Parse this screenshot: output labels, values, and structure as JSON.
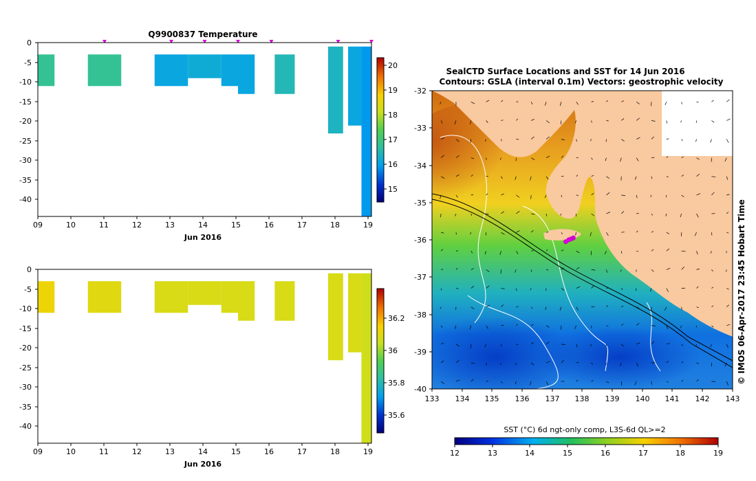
{
  "top_panel": {
    "title": "Q9900837  Temperature",
    "xticks": [
      "09",
      "10",
      "11",
      "12",
      "13",
      "14",
      "15",
      "16",
      "17",
      "18",
      "19"
    ],
    "yticks": [
      "0",
      "-5",
      "-10",
      "-15",
      "-20",
      "-25",
      "-30",
      "-35",
      "-40"
    ],
    "xlabel": "Jun 2016",
    "cbar_ticks": [
      "20",
      "19",
      "18",
      "17",
      "16",
      "15"
    ]
  },
  "bottom_panel": {
    "xticks": [
      "09",
      "10",
      "11",
      "12",
      "13",
      "14",
      "15",
      "16",
      "17",
      "18",
      "19"
    ],
    "yticks": [
      "0",
      "-5",
      "-10",
      "-15",
      "-20",
      "-25",
      "-30",
      "-35",
      "-40"
    ],
    "xlabel": "Jun 2016",
    "cbar_ticks": [
      "36.2",
      "36",
      "35.8",
      "35.6"
    ]
  },
  "map_panel": {
    "title_line1": "SealCTD Surface Locations and SST for 14 Jun 2016",
    "title_line2": "Contours: GSLA (interval 0.1m) Vectors: geostrophic velocity",
    "yticks": [
      "-32",
      "-33",
      "-34",
      "-35",
      "-36",
      "-37",
      "-38",
      "-39",
      "-40"
    ],
    "xticks": [
      "133",
      "134",
      "135",
      "136",
      "137",
      "138",
      "139",
      "140",
      "141",
      "142",
      "143"
    ],
    "colorbar_label": "SST (°C) 6d ngt-only comp, L3S-6d QL>=2",
    "colorbar_ticks": [
      "12",
      "13",
      "14",
      "15",
      "16",
      "17",
      "18",
      "19"
    ],
    "credit": "© IMOS 06-Apr-2017 23:45 Hobart Time"
  },
  "colors": {
    "land": "#f9c9a0",
    "marker": "#d400d4",
    "teal": "#1ec49a",
    "cyan": "#1cd0e0",
    "yellow": "#f5d800",
    "gold": "#f5c000"
  },
  "chart_data": [
    {
      "type": "heatmap",
      "title": "Q9900837  Temperature",
      "xlabel": "Jun 2016",
      "ylabel": "",
      "xlim": [
        9,
        19
      ],
      "ylim": [
        -44,
        0
      ],
      "colorbar_range": [
        14.6,
        20.4
      ],
      "colorbar_ticks": [
        15,
        16,
        17,
        18,
        19,
        20
      ],
      "profile_markers_x": [
        11,
        13,
        14,
        15,
        16,
        18,
        19
      ],
      "cells": [
        {
          "x0": 9.0,
          "x1": 9.5,
          "y0": -3,
          "y1": -11,
          "value": 16.9
        },
        {
          "x0": 10.5,
          "x1": 11.5,
          "y0": -3,
          "y1": -11,
          "value": 16.9
        },
        {
          "x0": 12.5,
          "x1": 13.5,
          "y0": -3,
          "y1": -11,
          "value": 16.2
        },
        {
          "x0": 13.5,
          "x1": 14.5,
          "y0": -3,
          "y1": -9,
          "value": 16.3
        },
        {
          "x0": 14.5,
          "x1": 15.0,
          "y0": -3,
          "y1": -11,
          "value": 16.2
        },
        {
          "x0": 15.0,
          "x1": 15.5,
          "y0": -3,
          "y1": -13,
          "value": 16.2
        },
        {
          "x0": 16.1,
          "x1": 16.7,
          "y0": -3,
          "y1": -13,
          "value": 16.6
        },
        {
          "x0": 17.7,
          "x1": 18.15,
          "y0": -1,
          "y1": -23,
          "value": 16.5
        },
        {
          "x0": 18.3,
          "x1": 18.7,
          "y0": -1,
          "y1": -21,
          "value": 16.2
        },
        {
          "x0": 18.7,
          "x1": 19.0,
          "y0": -1,
          "y1": -44,
          "value": 16.0
        }
      ]
    },
    {
      "type": "heatmap",
      "title": "",
      "xlabel": "Jun 2016",
      "ylabel": "",
      "xlim": [
        9,
        19
      ],
      "ylim": [
        -44,
        0
      ],
      "colorbar_range": [
        35.48,
        36.42
      ],
      "colorbar_ticks": [
        35.6,
        35.8,
        36.0,
        36.2
      ],
      "cells": [
        {
          "x0": 9.0,
          "x1": 9.5,
          "y0": -3,
          "y1": -11,
          "value": 36.15
        },
        {
          "x0": 10.5,
          "x1": 11.5,
          "y0": -3,
          "y1": -11,
          "value": 36.12
        },
        {
          "x0": 12.5,
          "x1": 13.5,
          "y0": -3,
          "y1": -11,
          "value": 36.1
        },
        {
          "x0": 13.5,
          "x1": 14.5,
          "y0": -3,
          "y1": -9,
          "value": 36.1
        },
        {
          "x0": 14.5,
          "x1": 15.0,
          "y0": -3,
          "y1": -11,
          "value": 36.1
        },
        {
          "x0": 15.0,
          "x1": 15.5,
          "y0": -3,
          "y1": -13,
          "value": 36.1
        },
        {
          "x0": 16.1,
          "x1": 16.7,
          "y0": -3,
          "y1": -13,
          "value": 36.1
        },
        {
          "x0": 17.7,
          "x1": 18.15,
          "y0": -1,
          "y1": -23,
          "value": 36.1
        },
        {
          "x0": 18.3,
          "x1": 18.7,
          "y0": -1,
          "y1": -21,
          "value": 36.1
        },
        {
          "x0": 18.7,
          "x1": 19.0,
          "y0": -1,
          "y1": -44,
          "value": 36.08
        }
      ]
    },
    {
      "type": "heatmap",
      "title": "SealCTD Surface Locations and SST for 14 Jun 2016",
      "xlabel": "",
      "ylabel": "",
      "xlim": [
        133,
        143
      ],
      "ylim": [
        -40,
        -32
      ],
      "colorbar_range": [
        12,
        19
      ],
      "colorbar_ticks": [
        12,
        13,
        14,
        15,
        16,
        17,
        18,
        19
      ],
      "seal_locations": [
        {
          "lon": 137.45,
          "lat": -36.05
        },
        {
          "lon": 137.55,
          "lat": -36.0
        },
        {
          "lon": 137.62,
          "lat": -35.98
        },
        {
          "lon": 137.7,
          "lat": -35.95
        }
      ]
    }
  ]
}
